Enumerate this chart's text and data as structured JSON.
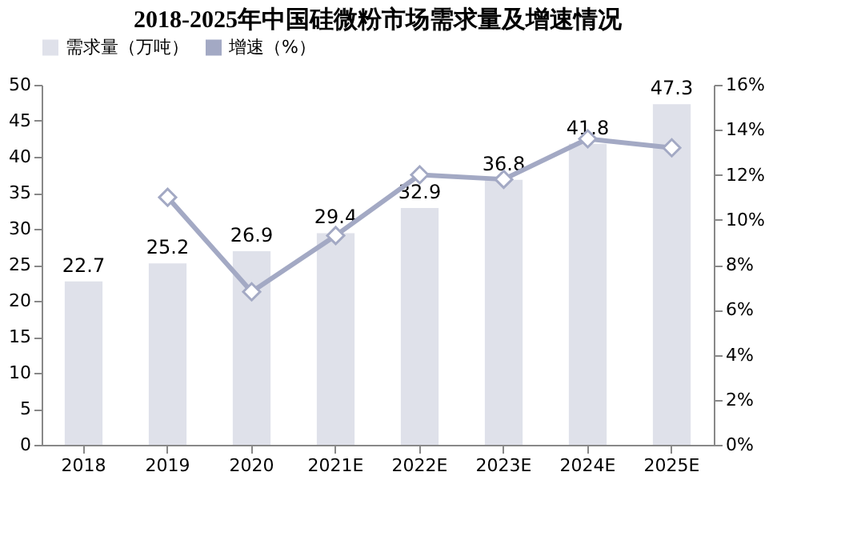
{
  "chart_data": {
    "type": "bar",
    "title": "2018-2025年中国硅微粉市场需求量及增速情况",
    "categories": [
      "2018",
      "2019",
      "2020",
      "2021E",
      "2022E",
      "2023E",
      "2024E",
      "2025E"
    ],
    "series": [
      {
        "name": "需求量（万吨）",
        "color": "#dfe1ea",
        "values": [
          22.7,
          25.2,
          26.9,
          29.4,
          32.9,
          36.8,
          41.8,
          47.3
        ],
        "value_labels": [
          "22.7",
          "25.2",
          "26.9",
          "29.4",
          "32.9",
          "36.8",
          "41.8",
          "47.3"
        ]
      },
      {
        "name": "增速（%）",
        "type": "line",
        "axis": "y2",
        "color": "#a3a9c4",
        "marker": "diamond",
        "values": [
          null,
          11.0,
          6.8,
          9.3,
          12.0,
          11.8,
          13.6,
          13.2
        ]
      }
    ],
    "ylim": [
      0,
      50
    ],
    "yticks": [
      0,
      5,
      10,
      15,
      20,
      25,
      30,
      35,
      40,
      45,
      50
    ],
    "y2lim": [
      0,
      16
    ],
    "y2ticks": [
      {
        "value": 0,
        "label": "0%"
      },
      {
        "value": 2,
        "label": "2%"
      },
      {
        "value": 4,
        "label": "4%"
      },
      {
        "value": 6,
        "label": "6%"
      },
      {
        "value": 8,
        "label": "8%"
      },
      {
        "value": 10,
        "label": "10%"
      },
      {
        "value": 12,
        "label": "12%"
      },
      {
        "value": 14,
        "label": "14%"
      },
      {
        "value": 16,
        "label": "16%"
      }
    ],
    "grid": false,
    "legend": "top"
  }
}
